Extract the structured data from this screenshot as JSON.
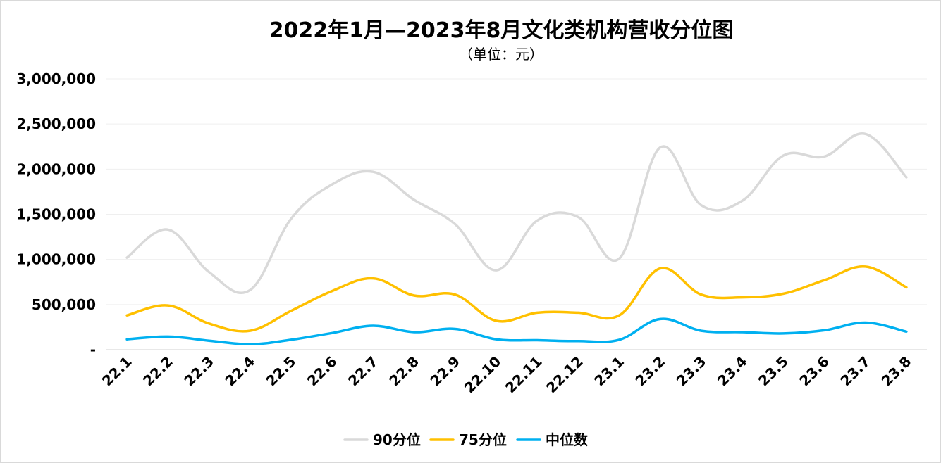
{
  "chart_data": {
    "type": "line",
    "title": "2022年1月—2023年8月文化类机构营收分位图",
    "subtitle": "（单位：元）",
    "xlabel": "",
    "ylabel": "",
    "ylim": [
      0,
      3000000
    ],
    "yticks": [
      {
        "value": 0,
        "label": "-"
      },
      {
        "value": 500000,
        "label": "500,000"
      },
      {
        "value": 1000000,
        "label": "1,000,000"
      },
      {
        "value": 1500000,
        "label": "1,500,000"
      },
      {
        "value": 2000000,
        "label": "2,000,000"
      },
      {
        "value": 2500000,
        "label": "2,500,000"
      },
      {
        "value": 3000000,
        "label": "3,000,000"
      }
    ],
    "grid": true,
    "legend_position": "bottom",
    "categories": [
      "22.1",
      "22.2",
      "22.3",
      "22.4",
      "22.5",
      "22.6",
      "22.7",
      "22.8",
      "22.9",
      "22.10",
      "22.11",
      "22.12",
      "23.1",
      "23.2",
      "23.3",
      "23.4",
      "23.5",
      "23.6",
      "23.7",
      "23.8"
    ],
    "series": [
      {
        "name": "90分位",
        "color": "#d9d9d9",
        "values": [
          1020000,
          1330000,
          860000,
          660000,
          1450000,
          1830000,
          1970000,
          1660000,
          1390000,
          880000,
          1430000,
          1470000,
          1010000,
          2240000,
          1600000,
          1650000,
          2150000,
          2140000,
          2390000,
          1910000
        ]
      },
      {
        "name": "75分位",
        "color": "#ffc000",
        "values": [
          380000,
          490000,
          290000,
          210000,
          430000,
          650000,
          790000,
          600000,
          610000,
          320000,
          410000,
          410000,
          380000,
          900000,
          610000,
          580000,
          620000,
          770000,
          920000,
          690000
        ]
      },
      {
        "name": "中位数",
        "color": "#00b0f0",
        "values": [
          115000,
          145000,
          100000,
          60000,
          110000,
          185000,
          265000,
          195000,
          230000,
          115000,
          105000,
          95000,
          110000,
          340000,
          210000,
          195000,
          180000,
          215000,
          300000,
          200000
        ]
      }
    ]
  }
}
